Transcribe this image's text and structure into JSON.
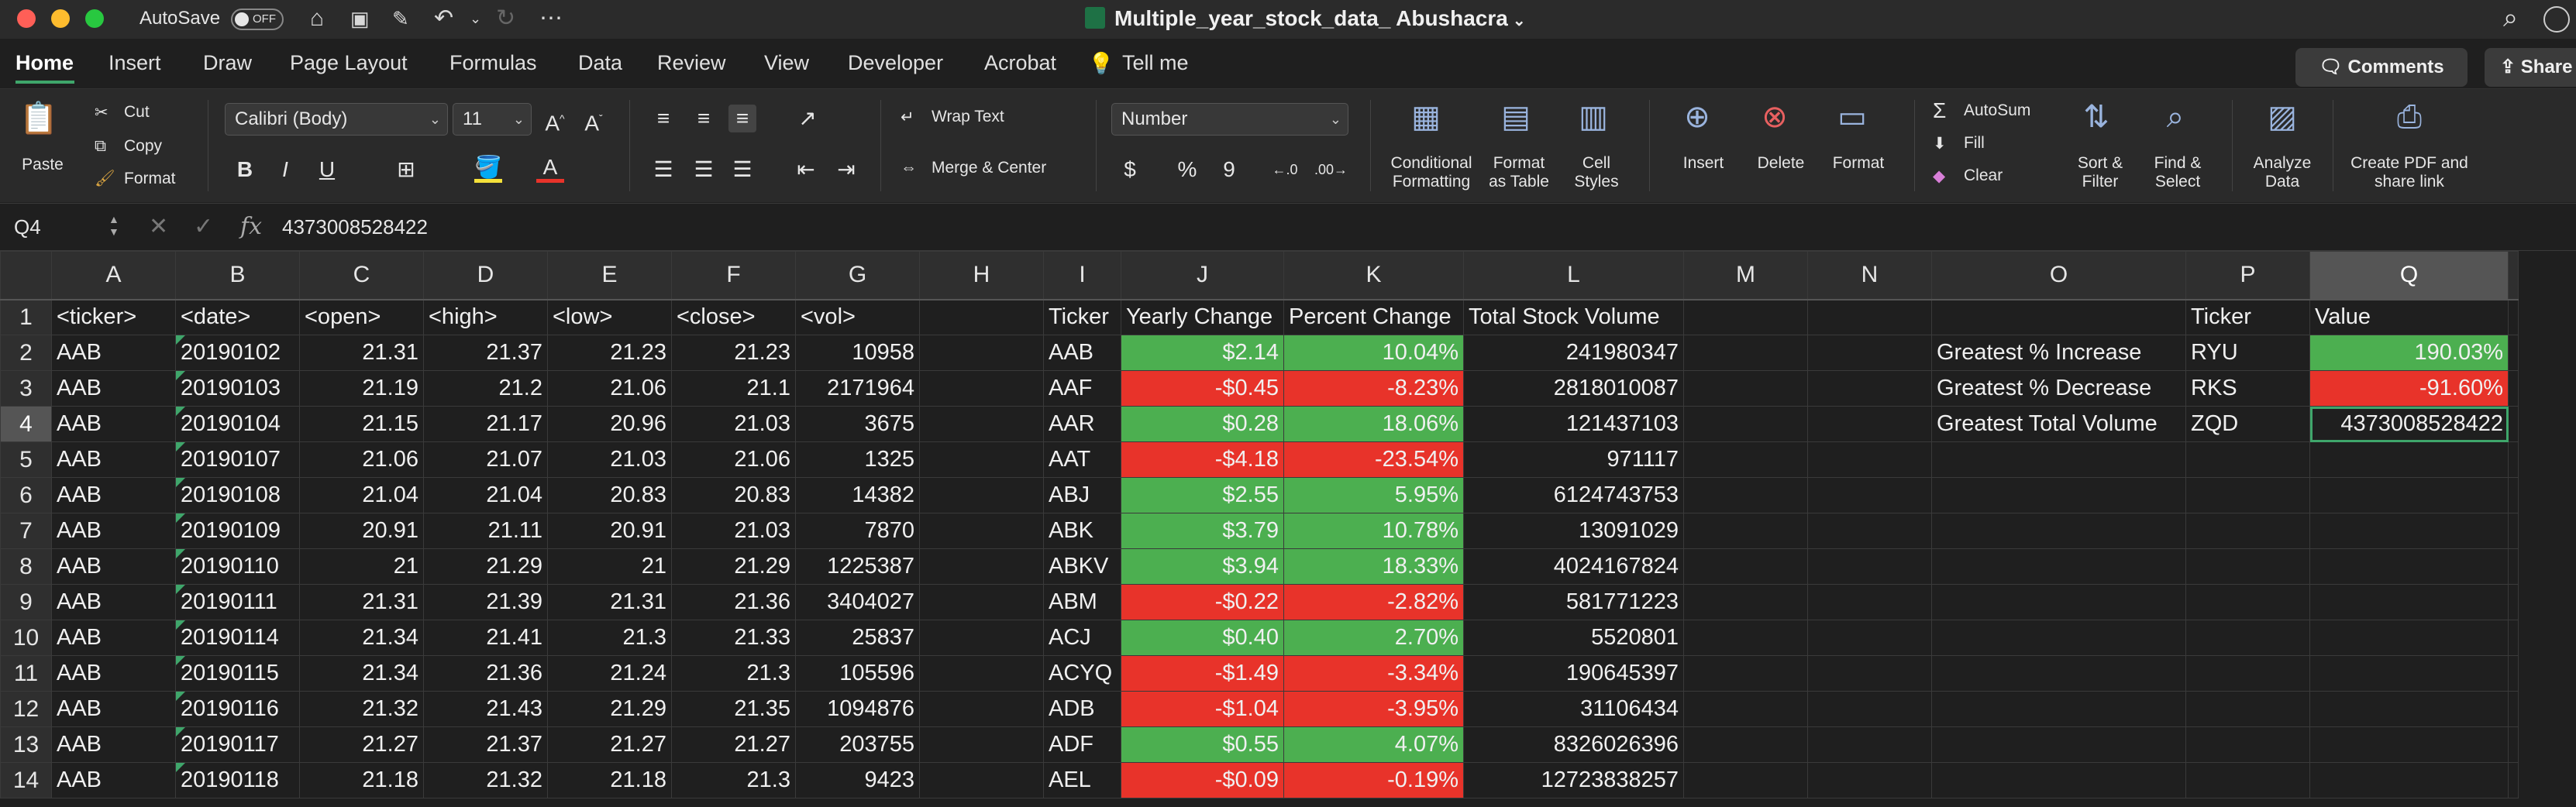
{
  "window": {
    "autosave_label": "AutoSave",
    "autosave_state": "OFF",
    "title": "Multiple_year_stock_data_ Abushacra"
  },
  "tabs": [
    "Home",
    "Insert",
    "Draw",
    "Page Layout",
    "Formulas",
    "Data",
    "Review",
    "View",
    "Developer",
    "Acrobat",
    "Tell me"
  ],
  "active_tab": "Home",
  "top_buttons": {
    "comments": "Comments",
    "share": "Share"
  },
  "ribbon": {
    "paste": "Paste",
    "cut": "Cut",
    "copy": "Copy",
    "format_painter": "Format",
    "font_name": "Calibri (Body)",
    "font_size": "11",
    "bold": "B",
    "italic": "I",
    "underline": "U",
    "wrap_text": "Wrap Text",
    "merge_center": "Merge & Center",
    "number_format": "Number",
    "currency": "$",
    "percent": "%",
    "comma": "9",
    "conditional_formatting": "Conditional Formatting",
    "format_as_table": "Format as Table",
    "cell_styles": "Cell Styles",
    "insert": "Insert",
    "delete": "Delete",
    "format": "Format",
    "autosum": "AutoSum",
    "fill": "Fill",
    "clear": "Clear",
    "sort_filter": "Sort & Filter",
    "find_select": "Find & Select",
    "analyze_data": "Analyze Data",
    "create_pdf": "Create PDF and share link"
  },
  "formula_bar": {
    "cell_ref": "Q4",
    "fx": "fx",
    "value": "4373008528422"
  },
  "columns": [
    "A",
    "B",
    "C",
    "D",
    "E",
    "F",
    "G",
    "H",
    "I",
    "J",
    "K",
    "L",
    "M",
    "N",
    "O",
    "P",
    "Q"
  ],
  "selected_column": "Q",
  "selected_row": 4,
  "rows": [
    [
      "<ticker>",
      "<date>",
      "<open>",
      "<high>",
      "<low>",
      "<close>",
      "<vol>",
      "",
      "Ticker",
      "Yearly Change",
      "Percent Change",
      "Total Stock Volume",
      "",
      "",
      "",
      "Ticker",
      "Value"
    ],
    [
      "AAB",
      "20190102",
      "21.31",
      "21.37",
      "21.23",
      "21.23",
      "10958",
      "",
      "AAB",
      "$2.14",
      "10.04%",
      "241980347",
      "",
      "",
      "Greatest % Increase",
      "RYU",
      "190.03%"
    ],
    [
      "AAB",
      "20190103",
      "21.19",
      "21.2",
      "21.06",
      "21.1",
      "2171964",
      "",
      "AAF",
      "-$0.45",
      "-8.23%",
      "2818010087",
      "",
      "",
      "Greatest % Decrease",
      "RKS",
      "-91.60%"
    ],
    [
      "AAB",
      "20190104",
      "21.15",
      "21.17",
      "20.96",
      "21.03",
      "3675",
      "",
      "AAR",
      "$0.28",
      "18.06%",
      "121437103",
      "",
      "",
      "Greatest Total Volume",
      "ZQD",
      "4373008528422"
    ],
    [
      "AAB",
      "20190107",
      "21.06",
      "21.07",
      "21.03",
      "21.06",
      "1325",
      "",
      "AAT",
      "-$4.18",
      "-23.54%",
      "971117",
      "",
      "",
      "",
      "",
      ""
    ],
    [
      "AAB",
      "20190108",
      "21.04",
      "21.04",
      "20.83",
      "20.83",
      "14382",
      "",
      "ABJ",
      "$2.55",
      "5.95%",
      "6124743753",
      "",
      "",
      "",
      "",
      ""
    ],
    [
      "AAB",
      "20190109",
      "20.91",
      "21.11",
      "20.91",
      "21.03",
      "7870",
      "",
      "ABK",
      "$3.79",
      "10.78%",
      "13091029",
      "",
      "",
      "",
      "",
      ""
    ],
    [
      "AAB",
      "20190110",
      "21",
      "21.29",
      "21",
      "21.29",
      "1225387",
      "",
      "ABKV",
      "$3.94",
      "18.33%",
      "4024167824",
      "",
      "",
      "",
      "",
      ""
    ],
    [
      "AAB",
      "20190111",
      "21.31",
      "21.39",
      "21.31",
      "21.36",
      "3404027",
      "",
      "ABM",
      "-$0.22",
      "-2.82%",
      "581771223",
      "",
      "",
      "",
      "",
      ""
    ],
    [
      "AAB",
      "20190114",
      "21.34",
      "21.41",
      "21.3",
      "21.33",
      "25837",
      "",
      "ACJ",
      "$0.40",
      "2.70%",
      "5520801",
      "",
      "",
      "",
      "",
      ""
    ],
    [
      "AAB",
      "20190115",
      "21.34",
      "21.36",
      "21.24",
      "21.3",
      "105596",
      "",
      "ACYQ",
      "-$1.49",
      "-3.34%",
      "190645397",
      "",
      "",
      "",
      "",
      ""
    ],
    [
      "AAB",
      "20190116",
      "21.32",
      "21.43",
      "21.29",
      "21.35",
      "1094876",
      "",
      "ADB",
      "-$1.04",
      "-3.95%",
      "31106434",
      "",
      "",
      "",
      "",
      ""
    ],
    [
      "AAB",
      "20190117",
      "21.27",
      "21.37",
      "21.27",
      "21.27",
      "203755",
      "",
      "ADF",
      "$0.55",
      "4.07%",
      "8326026396",
      "",
      "",
      "",
      "",
      ""
    ],
    [
      "AAB",
      "20190118",
      "21.18",
      "21.32",
      "21.18",
      "21.3",
      "9423",
      "",
      "AEL",
      "-$0.09",
      "-0.19%",
      "12723838257",
      "",
      "",
      "",
      "",
      ""
    ]
  ],
  "colors": {
    "positive": "#4caf50",
    "negative": "#e8332a",
    "accent": "#3fa66b"
  }
}
